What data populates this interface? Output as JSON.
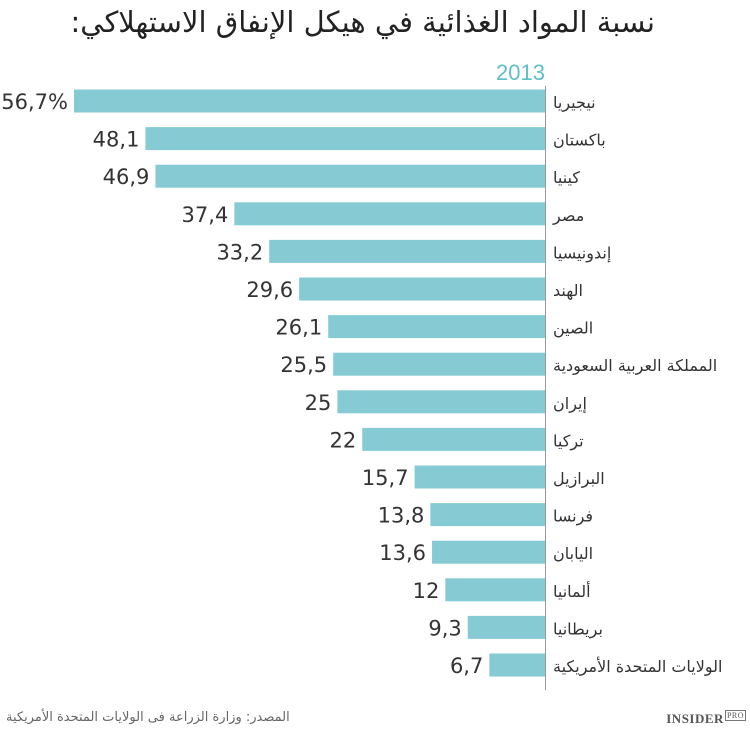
{
  "chart_data": {
    "type": "bar",
    "orientation": "horizontal",
    "title": "نسبة المواد الغذائية في هيكل الإنفاق الاستهلاكي:",
    "series_label": "2013",
    "categories": [
      "نيجيريا",
      "باكستان",
      "كينيا",
      "مصر",
      "إندونيسيا",
      "الهند",
      "الصين",
      "المملكة العربية السعودية",
      "إيران",
      "تركيا",
      "البرازيل",
      "فرنسا",
      "اليابان",
      "ألمانيا",
      "بريطانيا",
      "الولايات المتحدة الأمريكية"
    ],
    "values": [
      56.7,
      48.1,
      46.9,
      37.4,
      33.2,
      29.6,
      26.1,
      25.5,
      25,
      22,
      15.7,
      13.8,
      13.6,
      12,
      9.3,
      6.7
    ],
    "data_labels": [
      "56,7%",
      "48,1",
      "46,9",
      "37,4",
      "33,2",
      "29,6",
      "26,1",
      "25,5",
      "25",
      "22",
      "15,7",
      "13,8",
      "13,6",
      "12",
      "9,3",
      "6,7"
    ],
    "xlim": [
      0,
      56.7
    ],
    "grid": false,
    "bar_color": "#86cbd3",
    "label_color": "#5fbfc9"
  },
  "source": "المصدر: وزارة الزراعة فى الولايات المتحدة الأمريكية",
  "logo": {
    "main": "INSIDER",
    "sup": "PRO"
  }
}
